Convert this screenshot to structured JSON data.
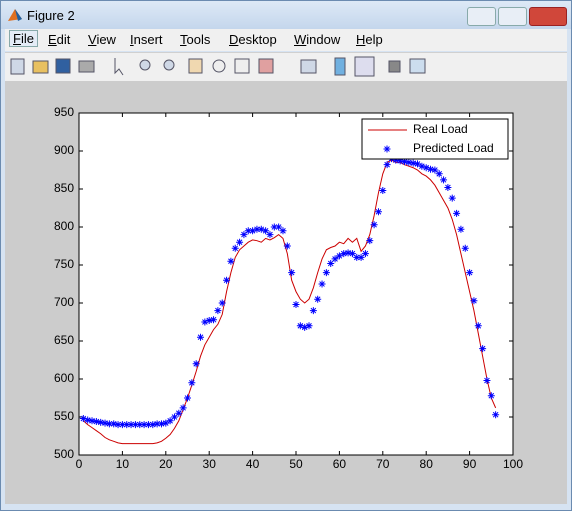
{
  "window": {
    "title": "Figure 2",
    "menus": [
      "File",
      "Edit",
      "View",
      "Insert",
      "Tools",
      "Desktop",
      "Window",
      "Help"
    ]
  },
  "chart_data": {
    "type": "line",
    "x": [
      1,
      2,
      3,
      4,
      5,
      6,
      7,
      8,
      9,
      10,
      11,
      12,
      13,
      14,
      15,
      16,
      17,
      18,
      19,
      20,
      21,
      22,
      23,
      24,
      25,
      26,
      27,
      28,
      29,
      30,
      31,
      32,
      33,
      34,
      35,
      36,
      37,
      38,
      39,
      40,
      41,
      42,
      43,
      44,
      45,
      46,
      47,
      48,
      49,
      50,
      51,
      52,
      53,
      54,
      55,
      56,
      57,
      58,
      59,
      60,
      61,
      62,
      63,
      64,
      65,
      66,
      67,
      68,
      69,
      70,
      71,
      72,
      73,
      74,
      75,
      76,
      77,
      78,
      79,
      80,
      81,
      82,
      83,
      84,
      85,
      86,
      87,
      88,
      89,
      90,
      91,
      92,
      93,
      94,
      95,
      96
    ],
    "series": [
      {
        "name": "Real Load",
        "color": "#cc0000",
        "marker": "none",
        "values": [
          545,
          540,
          536,
          532,
          528,
          523,
          520,
          518,
          516,
          515,
          515,
          515,
          515,
          515,
          515,
          515,
          515,
          516,
          518,
          522,
          527,
          535,
          545,
          560,
          575,
          592,
          610,
          630,
          645,
          655,
          665,
          672,
          685,
          715,
          740,
          760,
          770,
          775,
          780,
          783,
          782,
          780,
          785,
          783,
          786,
          790,
          785,
          765,
          730,
          715,
          705,
          700,
          705,
          720,
          740,
          758,
          770,
          773,
          775,
          780,
          778,
          785,
          780,
          785,
          768,
          775,
          790,
          815,
          845,
          870,
          885,
          888,
          885,
          885,
          882,
          880,
          878,
          875,
          870,
          867,
          862,
          855,
          845,
          835,
          825,
          810,
          790,
          765,
          740,
          715,
          690,
          660,
          630,
          600,
          575,
          562
        ]
      },
      {
        "name": "Predicted Load",
        "color": "#0000ff",
        "marker": "star",
        "values": [
          548,
          546,
          545,
          544,
          543,
          542,
          541,
          541,
          540,
          540,
          540,
          540,
          540,
          540,
          540,
          540,
          540,
          541,
          541,
          542,
          545,
          550,
          555,
          562,
          575,
          595,
          620,
          655,
          675,
          677,
          678,
          690,
          700,
          730,
          755,
          772,
          780,
          790,
          795,
          795,
          797,
          797,
          795,
          790,
          800,
          800,
          795,
          775,
          740,
          698,
          670,
          668,
          670,
          690,
          705,
          725,
          740,
          752,
          758,
          762,
          765,
          766,
          765,
          760,
          760,
          765,
          782,
          803,
          820,
          848,
          882,
          890,
          888,
          887,
          886,
          885,
          884,
          883,
          880,
          878,
          876,
          875,
          870,
          862,
          852,
          838,
          818,
          797,
          772,
          740,
          703,
          670,
          640,
          598,
          578,
          553
        ]
      }
    ],
    "xlim": [
      0,
      100
    ],
    "xticks": [
      0,
      10,
      20,
      30,
      40,
      50,
      60,
      70,
      80,
      90,
      100
    ],
    "ylim": [
      500,
      950
    ],
    "yticks": [
      500,
      550,
      600,
      650,
      700,
      750,
      800,
      850,
      900,
      950
    ],
    "grid": false,
    "legend": "northeast"
  }
}
